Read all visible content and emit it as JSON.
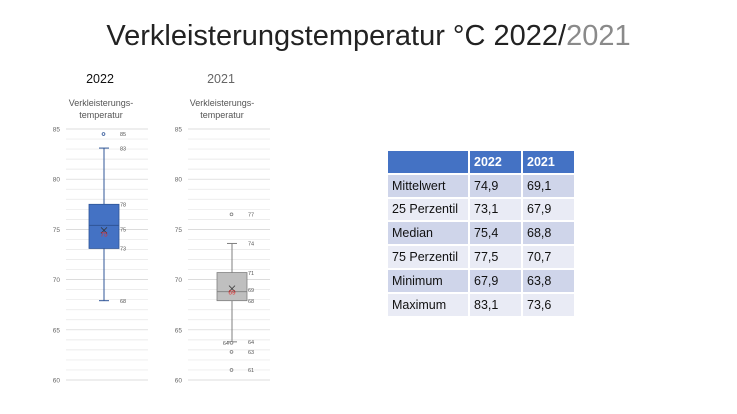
{
  "title": {
    "main": "Verkleisterungstemperatur °C 2022/",
    "accent": "2021"
  },
  "chart_data": [
    {
      "type": "box",
      "heading": "2022",
      "title": "Verkleisterungs-\ntemperatur",
      "ylim": [
        60,
        85
      ],
      "yticks": [
        85,
        80,
        75,
        70,
        65,
        60
      ],
      "grid": true,
      "color": "#4472c4",
      "stats": {
        "mean": 74.9,
        "q1": 73.1,
        "median": 75.4,
        "q3": 77.5,
        "min": 67.9,
        "max": 83.1
      },
      "outliers": [
        84.5
      ],
      "labels": [
        {
          "y": 84.5,
          "text": "85"
        },
        {
          "y": 83.1,
          "text": "83"
        },
        {
          "y": 77.5,
          "text": "78"
        },
        {
          "y": 75.0,
          "text": "75"
        },
        {
          "y": 73.1,
          "text": "73"
        },
        {
          "y": 67.9,
          "text": "68"
        }
      ],
      "mean_label": "75"
    },
    {
      "type": "box",
      "heading": "2021",
      "title": "Verkleisterungs-\ntemperatur",
      "ylim": [
        60,
        85
      ],
      "yticks": [
        85,
        80,
        75,
        70,
        65,
        60
      ],
      "grid": true,
      "color": "#bfbfbf",
      "stats": {
        "mean": 69.1,
        "q1": 67.9,
        "median": 68.8,
        "q3": 70.7,
        "min": 63.8,
        "max": 73.6
      },
      "outliers": [
        76.5,
        63.7,
        62.8,
        61.0
      ],
      "labels": [
        {
          "y": 76.5,
          "text": "77"
        },
        {
          "y": 73.6,
          "text": "74"
        },
        {
          "y": 70.7,
          "text": "71"
        },
        {
          "y": 69.0,
          "text": "69"
        },
        {
          "y": 67.9,
          "text": "68"
        },
        {
          "y": 63.8,
          "text": "64"
        },
        {
          "y": 62.8,
          "text": "63"
        },
        {
          "y": 61.0,
          "text": "61"
        }
      ],
      "outlier_left_label": "64",
      "mean_label": "69"
    },
    {
      "type": "table",
      "columns": [
        "",
        "2022",
        "2021"
      ],
      "rows": [
        [
          "Mittelwert",
          "74,9",
          "69,1"
        ],
        [
          "25 Perzentil",
          "73,1",
          "67,9"
        ],
        [
          "Median",
          "75,4",
          "68,8"
        ],
        [
          "75 Perzentil",
          "77,5",
          "70,7"
        ],
        [
          "Minimum",
          "67,9",
          "63,8"
        ],
        [
          "Maximum",
          "83,1",
          "73,6"
        ]
      ]
    }
  ]
}
